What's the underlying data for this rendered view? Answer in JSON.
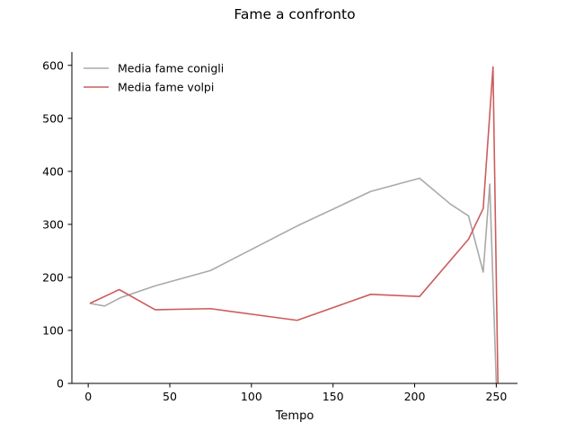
{
  "chart_data": {
    "type": "line",
    "title": "Fame a confronto",
    "xlabel": "Tempo",
    "ylabel": "",
    "xlim": [
      -10,
      263
    ],
    "ylim": [
      0,
      625
    ],
    "xticks": [
      0,
      50,
      100,
      150,
      200,
      250
    ],
    "yticks": [
      0,
      100,
      200,
      300,
      400,
      500,
      600
    ],
    "grid": false,
    "legend_position": "top-left",
    "series": [
      {
        "name": "Media fame conigli",
        "color": "#a9a9a9",
        "x": [
          1,
          10,
          20,
          41,
          75,
          128,
          173,
          203,
          222,
          233,
          242,
          246,
          250
        ],
        "y": [
          151,
          146,
          162,
          184,
          213,
          297,
          362,
          387,
          338,
          316,
          210,
          376,
          0
        ]
      },
      {
        "name": "Media fame volpi",
        "color": "#cd5c5c",
        "x": [
          1,
          19,
          41,
          75,
          128,
          173,
          203,
          233,
          242,
          248,
          251
        ],
        "y": [
          151,
          177,
          139,
          141,
          119,
          168,
          164,
          272,
          330,
          597,
          0
        ]
      }
    ]
  }
}
